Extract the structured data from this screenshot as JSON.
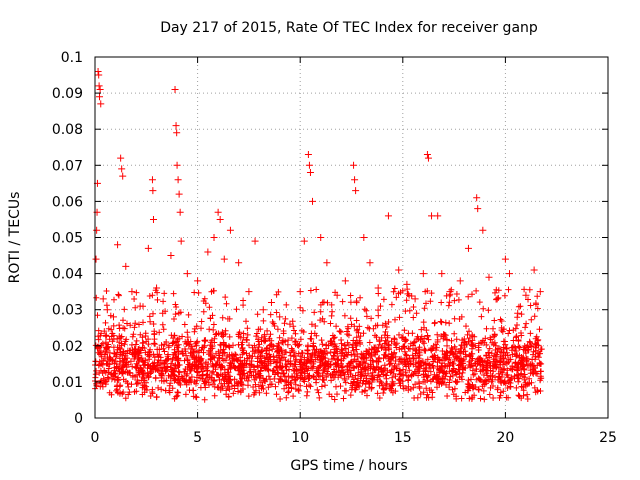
{
  "chart_data": {
    "type": "scatter",
    "title": "Day 217 of 2015, Rate Of TEC Index for receiver ganp",
    "xlabel": "GPS time / hours",
    "ylabel": "ROTI / TECUs",
    "xlim": [
      0,
      25
    ],
    "ylim": [
      0,
      0.1
    ],
    "x_ticks": [
      "0",
      "5",
      "10",
      "15",
      "20",
      "25"
    ],
    "y_ticks": [
      "0",
      "0.01",
      "0.02",
      "0.03",
      "0.04",
      "0.05",
      "0.06",
      "0.07",
      "0.08",
      "0.09",
      "0.1"
    ],
    "grid": true,
    "marker": "+",
    "color": "#ff0000",
    "data_span_hours": [
      0,
      21.8
    ],
    "bulk_range": [
      0.005,
      0.025
    ],
    "series": [
      {
        "points": [
          [
            0.05,
            0.044
          ],
          [
            0.08,
            0.052
          ],
          [
            0.1,
            0.057
          ],
          [
            0.12,
            0.065
          ],
          [
            0.15,
            0.096
          ],
          [
            0.18,
            0.095
          ],
          [
            0.2,
            0.092
          ],
          [
            0.22,
            0.089
          ],
          [
            0.25,
            0.091
          ],
          [
            0.28,
            0.087
          ],
          [
            0.4,
            0.033
          ],
          [
            0.6,
            0.03
          ],
          [
            0.9,
            0.028
          ],
          [
            1.1,
            0.048
          ],
          [
            1.25,
            0.072
          ],
          [
            1.3,
            0.069
          ],
          [
            1.35,
            0.067
          ],
          [
            1.5,
            0.042
          ],
          [
            1.8,
            0.035
          ],
          [
            2.2,
            0.031
          ],
          [
            2.6,
            0.047
          ],
          [
            2.8,
            0.066
          ],
          [
            2.82,
            0.063
          ],
          [
            2.85,
            0.055
          ],
          [
            3.0,
            0.036
          ],
          [
            3.3,
            0.029
          ],
          [
            3.7,
            0.045
          ],
          [
            3.9,
            0.091
          ],
          [
            3.95,
            0.081
          ],
          [
            3.98,
            0.079
          ],
          [
            4.0,
            0.07
          ],
          [
            4.05,
            0.066
          ],
          [
            4.1,
            0.062
          ],
          [
            4.15,
            0.057
          ],
          [
            4.2,
            0.049
          ],
          [
            4.5,
            0.04
          ],
          [
            5.0,
            0.038
          ],
          [
            5.5,
            0.046
          ],
          [
            5.8,
            0.05
          ],
          [
            6.0,
            0.057
          ],
          [
            6.1,
            0.055
          ],
          [
            6.3,
            0.044
          ],
          [
            6.6,
            0.052
          ],
          [
            7.0,
            0.043
          ],
          [
            7.5,
            0.035
          ],
          [
            7.8,
            0.049
          ],
          [
            8.2,
            0.03
          ],
          [
            8.6,
            0.032
          ],
          [
            9.0,
            0.028
          ],
          [
            9.5,
            0.026
          ],
          [
            10.0,
            0.035
          ],
          [
            10.2,
            0.049
          ],
          [
            10.4,
            0.073
          ],
          [
            10.45,
            0.07
          ],
          [
            10.5,
            0.068
          ],
          [
            10.6,
            0.06
          ],
          [
            11.0,
            0.05
          ],
          [
            11.3,
            0.043
          ],
          [
            11.8,
            0.034
          ],
          [
            12.2,
            0.038
          ],
          [
            12.6,
            0.07
          ],
          [
            12.65,
            0.066
          ],
          [
            12.7,
            0.063
          ],
          [
            13.1,
            0.05
          ],
          [
            13.4,
            0.043
          ],
          [
            13.8,
            0.036
          ],
          [
            14.3,
            0.056
          ],
          [
            14.8,
            0.041
          ],
          [
            15.2,
            0.037
          ],
          [
            15.6,
            0.033
          ],
          [
            16.0,
            0.04
          ],
          [
            16.2,
            0.073
          ],
          [
            16.25,
            0.072
          ],
          [
            16.4,
            0.056
          ],
          [
            16.7,
            0.056
          ],
          [
            16.9,
            0.04
          ],
          [
            17.3,
            0.035
          ],
          [
            17.8,
            0.038
          ],
          [
            18.2,
            0.047
          ],
          [
            18.6,
            0.061
          ],
          [
            18.65,
            0.058
          ],
          [
            18.9,
            0.052
          ],
          [
            19.2,
            0.039
          ],
          [
            19.6,
            0.033
          ],
          [
            20.0,
            0.044
          ],
          [
            20.2,
            0.04
          ],
          [
            20.6,
            0.029
          ],
          [
            21.0,
            0.034
          ],
          [
            21.4,
            0.041
          ],
          [
            21.7,
            0.035
          ]
        ]
      }
    ]
  }
}
